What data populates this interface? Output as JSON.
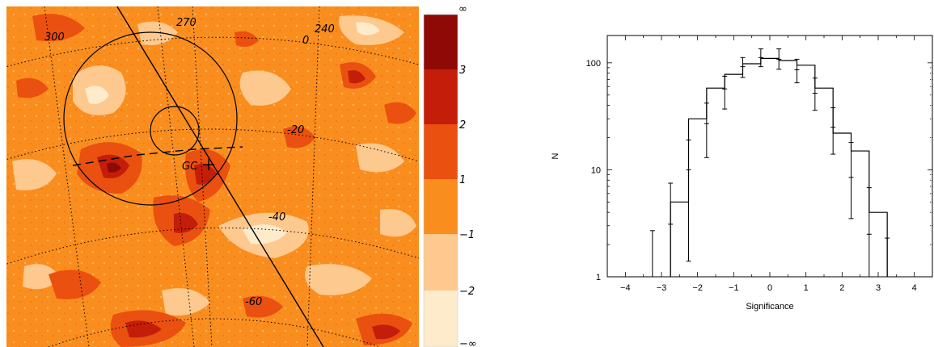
{
  "map": {
    "colors": {
      "lowest": "#fdebcc",
      "low": "#fdc98e",
      "mid": "#f98e1f",
      "high": "#ea5010",
      "higher": "#c41d0a",
      "highest": "#8f0a07"
    },
    "longitude_labels": [
      "300",
      "270",
      "240",
      "0"
    ],
    "latitude_labels": [
      "-20",
      "-40",
      "-60"
    ],
    "marker_label": "GC",
    "colorbar_labels": [
      "∞",
      "3",
      "2",
      "1",
      "−1",
      "−2",
      "−∞"
    ]
  },
  "chart_data": {
    "type": "histogram",
    "xlabel": "Significance",
    "ylabel": "N",
    "xlim": [
      -4.5,
      4.5
    ],
    "ylim": [
      1,
      180
    ],
    "yscale": "log",
    "x_ticks": [
      -4,
      -3,
      -2,
      -1,
      0,
      1,
      2,
      3,
      4
    ],
    "y_ticks": [
      1,
      10,
      100
    ],
    "bin_width": 0.5,
    "histogram": {
      "bin_edges": [
        -2.75,
        -2.25,
        -1.75,
        -1.25,
        -0.75,
        -0.25,
        0.25,
        0.75,
        1.25,
        1.75,
        2.25,
        2.75,
        3.25
      ],
      "counts": [
        5,
        30,
        58,
        78,
        98,
        110,
        105,
        95,
        58,
        22,
        15,
        4
      ]
    },
    "points": [
      {
        "x": -3.25,
        "y": 1,
        "ylo": 0.7,
        "yhi": 2.7
      },
      {
        "x": -2.75,
        "y": 3.1,
        "ylo": 0.7,
        "yhi": 7.5
      },
      {
        "x": -2.25,
        "y": 10,
        "ylo": 1.4,
        "yhi": 19
      },
      {
        "x": -1.75,
        "y": 27,
        "ylo": 13,
        "yhi": 42
      },
      {
        "x": -1.25,
        "y": 57,
        "ylo": 37,
        "yhi": 75
      },
      {
        "x": -0.75,
        "y": 92,
        "ylo": 73,
        "yhi": 112
      },
      {
        "x": -0.25,
        "y": 112,
        "ylo": 92,
        "yhi": 135
      },
      {
        "x": 0.25,
        "y": 108,
        "ylo": 87,
        "yhi": 135
      },
      {
        "x": 0.75,
        "y": 86,
        "ylo": 65,
        "yhi": 108
      },
      {
        "x": 1.25,
        "y": 52,
        "ylo": 36,
        "yhi": 72
      },
      {
        "x": 1.75,
        "y": 25,
        "ylo": 14,
        "yhi": 38
      },
      {
        "x": 2.25,
        "y": 8.5,
        "ylo": 3.5,
        "yhi": 18
      },
      {
        "x": 2.75,
        "y": 2.5,
        "ylo": 0.7,
        "yhi": 6.8
      },
      {
        "x": 3.25,
        "y": 1,
        "ylo": 0.7,
        "yhi": 2.3
      }
    ]
  }
}
